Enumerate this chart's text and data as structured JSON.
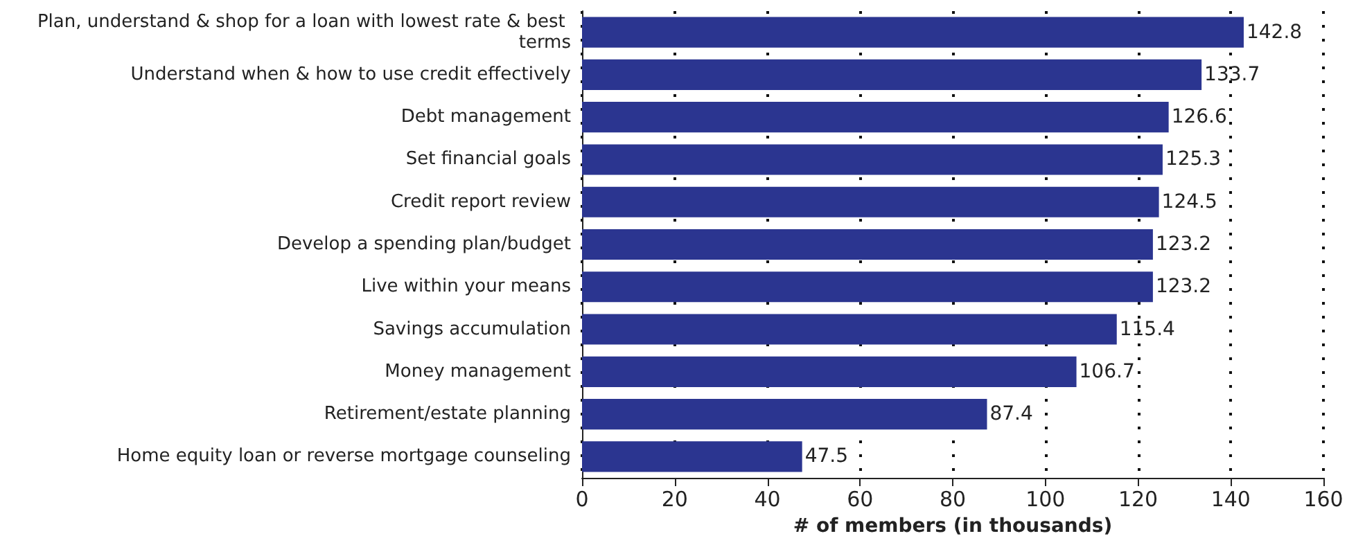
{
  "chart_data": {
    "type": "bar",
    "orientation": "horizontal",
    "xlabel": "# of members (in thousands)",
    "categories": [
      "Plan, understand & shop for a loan with lowest rate & best terms",
      "Understand when & how to use credit effectively",
      "Debt management",
      "Set financial goals",
      "Credit report review",
      "Develop a spending plan/budget",
      "Live within your means",
      "Savings accumulation",
      "Money management",
      "Retirement/estate planning",
      "Home equity loan or reverse mortgage counseling"
    ],
    "values": [
      142.8,
      133.7,
      126.6,
      125.3,
      124.5,
      123.2,
      123.2,
      115.4,
      106.7,
      87.4,
      47.5
    ],
    "color": "#2b3590",
    "xlim": [
      0,
      160
    ],
    "xticks": [
      0,
      20,
      40,
      60,
      80,
      100,
      120,
      140,
      160
    ],
    "grid": "x",
    "data_labels": true
  }
}
